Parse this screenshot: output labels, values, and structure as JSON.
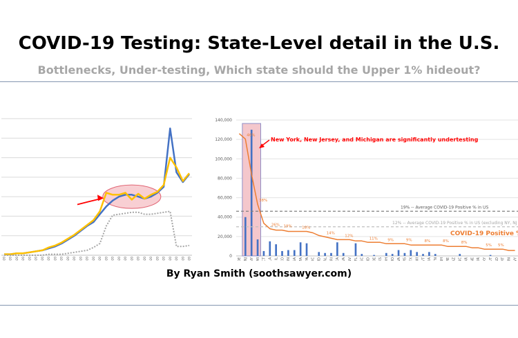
{
  "header": {
    "title": "COVID-19 Testing: State-Level detail in the U.S.",
    "subtitle": "Bottlenecks, Under-testing, Which state should the Upper 1% hideout?"
  },
  "footer": {
    "byline": "By Ryan Smith (soothsawyer.com)"
  },
  "colors": {
    "blue": "#4472c4",
    "gold": "#ffc000",
    "gray": "#a5a5a5",
    "orange": "#ed7d31",
    "red": "#ff0000",
    "highlight_fill": "#f4c7cc",
    "ellipse_fill": "#f8cfd3"
  },
  "chart_data": [
    {
      "type": "line",
      "x": [
        "3/8/2020",
        "3/9/2020",
        "3/10/2020",
        "3/11/2020",
        "3/12/2020",
        "3/13/2020",
        "3/14/2020",
        "3/15/2020",
        "3/16/2020",
        "3/17/2020",
        "3/18/2020",
        "3/19/2020",
        "3/20/2020",
        "3/21/2020",
        "3/22/2020",
        "3/23/2020",
        "3/24/2020",
        "3/25/2020",
        "3/26/2020",
        "3/27/2020",
        "3/28/2020",
        "3/29/2020",
        "3/30/2020",
        "3/31/2020",
        "4/1/2020",
        "4/2/2020",
        "4/3/2020",
        "4/4/2020",
        "4/5/2020",
        "4/6/2020"
      ],
      "series": [
        {
          "color": "blue",
          "values": [
            1,
            1,
            2,
            2,
            3,
            4,
            5,
            7,
            9,
            12,
            16,
            20,
            25,
            30,
            34,
            42,
            50,
            56,
            60,
            62,
            62,
            60,
            58,
            60,
            64,
            70,
            130,
            85,
            75,
            83
          ]
        },
        {
          "color": "gold",
          "values": [
            1,
            1,
            2,
            2,
            3,
            4,
            5,
            8,
            10,
            13,
            17,
            21,
            26,
            31,
            36,
            45,
            64,
            62,
            62,
            64,
            57,
            63,
            58,
            62,
            65,
            72,
            100,
            90,
            76,
            84
          ]
        },
        {
          "color": "gray",
          "values": [
            0,
            0,
            0,
            0,
            0,
            0,
            0,
            1,
            1,
            1,
            2,
            3,
            4,
            5,
            8,
            12,
            30,
            41,
            42,
            43,
            44,
            44,
            42,
            42,
            43,
            44,
            45,
            9,
            9,
            10
          ]
        }
      ],
      "ylim": [
        0,
        140
      ],
      "grid": true,
      "annotations": [
        "arrow pointing to circled plateau around 3/24–3/30"
      ]
    },
    {
      "type": "bar",
      "categories": [
        "DE",
        "NJ",
        "NY",
        "MI",
        "CT",
        "LA",
        "IL",
        "CO",
        "IN",
        "GA",
        "MA",
        "PA",
        "DC",
        "MD",
        "AL",
        "RI",
        "CA",
        "VA",
        "NV",
        "FL",
        "SC",
        "ID",
        "DE",
        "KS",
        "OH",
        "MO",
        "WA",
        "MS",
        "TX",
        "WI",
        "VT",
        "IA",
        "TN",
        "NH",
        "ME",
        "AZ",
        "NC",
        "AR",
        "NE",
        "OR",
        "KY",
        "UT",
        "SD",
        "MT",
        "MN",
        "WY"
      ],
      "values": [
        0,
        40000,
        130000,
        17000,
        5000,
        15000,
        12000,
        5000,
        6000,
        6000,
        14000,
        13000,
        0,
        4000,
        3000,
        3000,
        14000,
        3000,
        0,
        13000,
        2000,
        0,
        1000,
        0,
        3000,
        2000,
        6000,
        3000,
        6000,
        4000,
        2000,
        4000,
        2000,
        0,
        0,
        0,
        2000,
        0,
        0,
        0,
        0,
        1000,
        0,
        0,
        0,
        0
      ],
      "ylim": [
        0,
        140000
      ],
      "y_ticks": [
        "0",
        "20,000",
        "40,000",
        "60,000",
        "80,000",
        "100,000",
        "120,000",
        "140,000"
      ],
      "line_series": {
        "name": "COVID-19 Positive %",
        "values": [
          90,
          86,
          60,
          38,
          24,
          20,
          19,
          19,
          18,
          18,
          18,
          18,
          17,
          15,
          14,
          13,
          12,
          12,
          12,
          11,
          11,
          10,
          10,
          10,
          9,
          9,
          9,
          9,
          8,
          8,
          8,
          8,
          8,
          8,
          7,
          7,
          7,
          7,
          6,
          6,
          5,
          5,
          5,
          5,
          4,
          4
        ],
        "percent_labels": [
          "46%",
          "38%",
          "26%",
          "19%",
          "18%",
          "14%",
          "12%",
          "11%",
          "9%",
          "9%",
          "8%",
          "8%",
          "8%",
          "5%",
          "5%"
        ]
      },
      "reference_lines": [
        {
          "label": "19% -- Average COVID-19 Positive % in US",
          "value": 46000
        },
        {
          "label": "12% -- Average COVID-19 Positive % in US (excluding NY, NJ",
          "value": 30000
        }
      ],
      "annotations": [
        "New York, New Jersey, and Michigan are significantly undertesting"
      ],
      "grid": true
    }
  ]
}
